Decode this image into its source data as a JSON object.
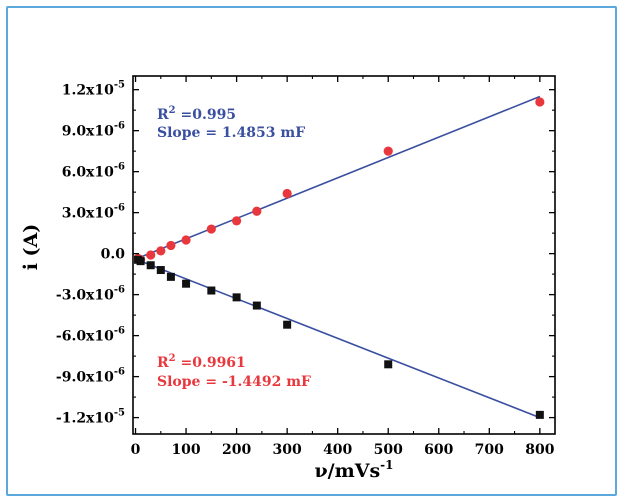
{
  "chart_data": {
    "type": "scatter",
    "xlabel": "ν/mVs",
    "xlabel_sup": "-1",
    "ylabel": "i (A)",
    "xlim": [
      -5,
      830
    ],
    "ylim": [
      -1.32e-05,
      1.3e-05
    ],
    "x_ticks": [
      0,
      100,
      200,
      300,
      400,
      500,
      600,
      700,
      800
    ],
    "x_tick_labels": [
      "0",
      "100",
      "200",
      "300",
      "400",
      "500",
      "600",
      "700",
      "800"
    ],
    "y_ticks": [
      1.2e-05,
      9e-06,
      6e-06,
      3e-06,
      0,
      -3e-06,
      -6e-06,
      -9e-06,
      -1.2e-05
    ],
    "y_tick_labels": [
      {
        "base": "1.2x10",
        "exp": "-5"
      },
      {
        "base": "9.0x10",
        "exp": "-6"
      },
      {
        "base": "6.0x10",
        "exp": "-6"
      },
      {
        "base": "3.0x10",
        "exp": "-6"
      },
      {
        "base": "0.0",
        "exp": ""
      },
      {
        "base": "-3.0x10",
        "exp": "-6"
      },
      {
        "base": "-6.0x10",
        "exp": "-6"
      },
      {
        "base": "-9.0x10",
        "exp": "-6"
      },
      {
        "base": "-1.2x10",
        "exp": "-5"
      }
    ],
    "grid": false,
    "series": [
      {
        "marker": "circle",
        "color": "#e8383d",
        "x": [
          5,
          10,
          30,
          50,
          70,
          100,
          150,
          200,
          240,
          300,
          500,
          800
        ],
        "y": [
          -3.5e-07,
          -4.5e-07,
          -1e-07,
          2e-07,
          6e-07,
          1e-06,
          1.8e-06,
          2.4e-06,
          3.1e-06,
          4.4e-06,
          7.5e-06,
          1.11e-05
        ]
      },
      {
        "marker": "square",
        "color": "#111111",
        "x": [
          5,
          10,
          30,
          50,
          70,
          100,
          150,
          200,
          240,
          300,
          500,
          800
        ],
        "y": [
          -4.5e-07,
          -5.5e-07,
          -8.5e-07,
          -1.2e-06,
          -1.7e-06,
          -2.2e-06,
          -2.7e-06,
          -3.2e-06,
          -3.8e-06,
          -5.2e-06,
          -8.1e-06,
          -1.18e-05
        ]
      }
    ],
    "fit_lines": [
      {
        "color": "#3a4fa0",
        "x": [
          0,
          800
        ],
        "y": [
          -4e-07,
          1.15e-05
        ]
      },
      {
        "color": "#3a4fa0",
        "x": [
          0,
          800
        ],
        "y": [
          -4e-07,
          -1.2e-05
        ]
      }
    ],
    "annotations": [
      {
        "id": "upper",
        "color": "#3a4fa0",
        "r_label": "R",
        "r_sup": "2",
        "r_value": " =0.995",
        "slope": "Slope = 1.4853 mF"
      },
      {
        "id": "lower",
        "color": "#e8383d",
        "r_label": "R",
        "r_sup": "2",
        "r_value": " =0.9961",
        "slope": "Slope = -1.4492 mF"
      }
    ]
  }
}
